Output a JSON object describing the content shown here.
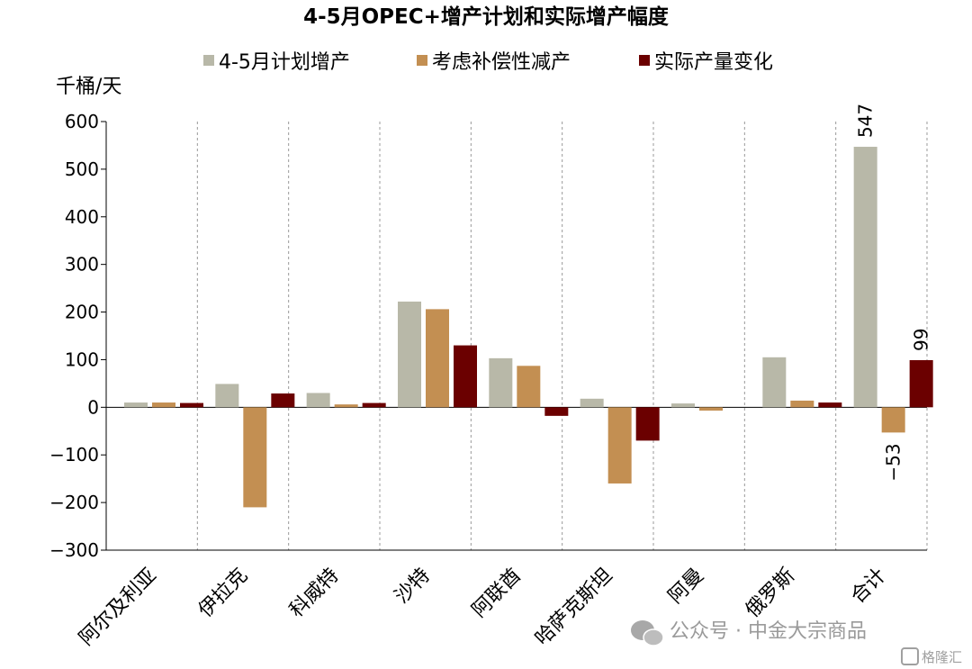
{
  "chart_data": {
    "type": "bar",
    "title": "4-5月OPEC+增产计划和实际增产幅度",
    "ylabel": "千桶/天",
    "xlabel": "",
    "ylim": [
      -300,
      600
    ],
    "yticks": [
      600,
      500,
      400,
      300,
      200,
      100,
      0,
      -100,
      -200,
      -300
    ],
    "legend_position": "top",
    "categories": [
      "阿尔及利亚",
      "伊拉克",
      "科威特",
      "沙特",
      "阿联酋",
      "哈萨克斯坦",
      "阿曼",
      "俄罗斯",
      "合计"
    ],
    "series": [
      {
        "name": "4-5月计划增产",
        "color": "#b8b8a8",
        "values": [
          10,
          49,
          30,
          222,
          103,
          18,
          8,
          105,
          547
        ]
      },
      {
        "name": "考虑补偿性减产",
        "color": "#c38f52",
        "values": [
          10,
          -210,
          6,
          206,
          87,
          -160,
          -7,
          14,
          -53
        ]
      },
      {
        "name": "实际产量变化",
        "color": "#6b0000",
        "values": [
          9,
          29,
          9,
          130,
          -18,
          -70,
          0,
          10,
          99
        ]
      }
    ],
    "annotations": [
      "547",
      "-53",
      "99"
    ],
    "grid": false
  },
  "watermark": {
    "text": "公众号 · 中金大宗商品",
    "logo_text": "格隆汇"
  }
}
